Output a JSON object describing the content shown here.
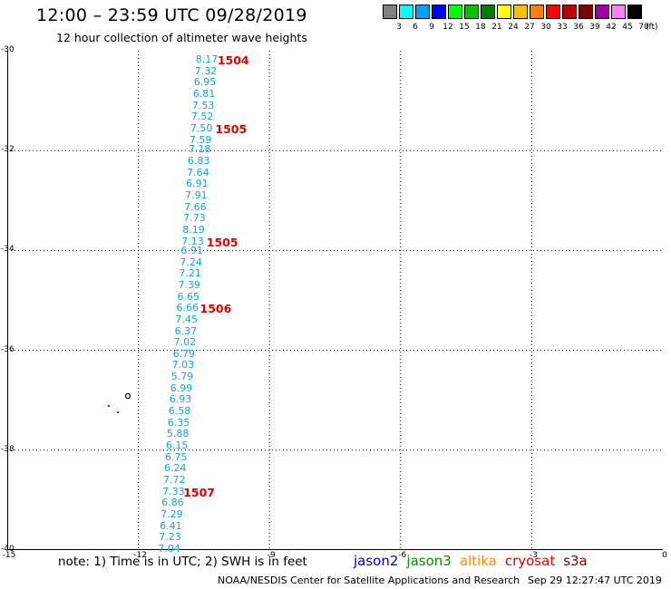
{
  "header": {
    "title": "12:00 – 23:59 UTC 09/28/2019",
    "subtitle": "12 hour collection of altimeter wave heights"
  },
  "colorbar": {
    "colors": [
      "#808080",
      "#00ffff",
      "#00a0ff",
      "#0000ff",
      "#00ff00",
      "#00c000",
      "#008000",
      "#ffff00",
      "#ffc000",
      "#ff8000",
      "#ff0000",
      "#c00000",
      "#800000",
      "#a000a0",
      "#ff80ff",
      "#000000"
    ],
    "labels": [
      "3",
      "6",
      "9",
      "12",
      "15",
      "18",
      "21",
      "24",
      "27",
      "30",
      "33",
      "36",
      "39",
      "42",
      "45",
      "70"
    ],
    "unit": "(ft)"
  },
  "map": {
    "y_labels": [
      "-30",
      "-32",
      "-34",
      "-36",
      "-38",
      "-40"
    ],
    "x_labels": [
      "-15",
      "-12",
      "-9",
      "-6",
      "-3",
      "0"
    ]
  },
  "chart_data": {
    "type": "scatter",
    "x_axis": "longitude",
    "y_axis": "latitude",
    "xlim": [
      -15,
      0
    ],
    "ylim": [
      -40,
      -30
    ],
    "track": [
      {
        "lat": -30.2,
        "lon": -10.4,
        "swh": "8.17"
      },
      {
        "lat": -30.43,
        "lon": -10.42,
        "swh": "7.32"
      },
      {
        "lat": -30.66,
        "lon": -10.44,
        "swh": "6.95"
      },
      {
        "lat": -30.89,
        "lon": -10.46,
        "swh": "6.81"
      },
      {
        "lat": -31.12,
        "lon": -10.48,
        "swh": "7.53"
      },
      {
        "lat": -31.35,
        "lon": -10.5,
        "swh": "7.52"
      },
      {
        "lat": -31.58,
        "lon": -10.52,
        "swh": "7.50"
      },
      {
        "lat": -31.81,
        "lon": -10.54,
        "swh": "7.59"
      },
      {
        "lat": -32.0,
        "lon": -10.56,
        "swh": "7.18"
      },
      {
        "lat": -32.23,
        "lon": -10.58,
        "swh": "6.83"
      },
      {
        "lat": -32.46,
        "lon": -10.6,
        "swh": "7.64"
      },
      {
        "lat": -32.69,
        "lon": -10.62,
        "swh": "6.91"
      },
      {
        "lat": -32.92,
        "lon": -10.64,
        "swh": "7.91"
      },
      {
        "lat": -33.15,
        "lon": -10.66,
        "swh": "7.66"
      },
      {
        "lat": -33.38,
        "lon": -10.68,
        "swh": "7.73"
      },
      {
        "lat": -33.61,
        "lon": -10.7,
        "swh": "8.19"
      },
      {
        "lat": -33.84,
        "lon": -10.72,
        "swh": "7.13"
      },
      {
        "lat": -34.03,
        "lon": -10.74,
        "swh": "6.91"
      },
      {
        "lat": -34.26,
        "lon": -10.76,
        "swh": "7.24"
      },
      {
        "lat": -34.49,
        "lon": -10.78,
        "swh": "7.21"
      },
      {
        "lat": -34.72,
        "lon": -10.8,
        "swh": "7.39"
      },
      {
        "lat": -34.95,
        "lon": -10.82,
        "swh": "6.65"
      },
      {
        "lat": -35.18,
        "lon": -10.84,
        "swh": "6.66"
      },
      {
        "lat": -35.41,
        "lon": -10.86,
        "swh": "7.45"
      },
      {
        "lat": -35.64,
        "lon": -10.88,
        "swh": "6.37"
      },
      {
        "lat": -35.87,
        "lon": -10.9,
        "swh": "7.02"
      },
      {
        "lat": -36.09,
        "lon": -10.92,
        "swh": "6.79"
      },
      {
        "lat": -36.32,
        "lon": -10.94,
        "swh": "7.03"
      },
      {
        "lat": -36.55,
        "lon": -10.96,
        "swh": "5.79"
      },
      {
        "lat": -36.78,
        "lon": -10.98,
        "swh": "6.99"
      },
      {
        "lat": -37.01,
        "lon": -11.0,
        "swh": "6.93"
      },
      {
        "lat": -37.24,
        "lon": -11.02,
        "swh": "6.58"
      },
      {
        "lat": -37.47,
        "lon": -11.04,
        "swh": "6.35"
      },
      {
        "lat": -37.7,
        "lon": -11.06,
        "swh": "5.88"
      },
      {
        "lat": -37.93,
        "lon": -11.08,
        "swh": "6.15"
      },
      {
        "lat": -38.16,
        "lon": -11.1,
        "swh": "6.75"
      },
      {
        "lat": -38.39,
        "lon": -11.12,
        "swh": "6.24"
      },
      {
        "lat": -38.62,
        "lon": -11.14,
        "swh": "7.72"
      },
      {
        "lat": -38.85,
        "lon": -11.16,
        "swh": "7.33"
      },
      {
        "lat": -39.08,
        "lon": -11.18,
        "swh": "6.86"
      },
      {
        "lat": -39.31,
        "lon": -11.2,
        "swh": "7.29"
      },
      {
        "lat": -39.54,
        "lon": -11.22,
        "swh": "6.41"
      },
      {
        "lat": -39.77,
        "lon": -11.24,
        "swh": "7.23"
      },
      {
        "lat": -40.0,
        "lon": -11.26,
        "swh": "7.04"
      }
    ],
    "time_labels": [
      {
        "lat": -30.2,
        "lon": -9.9,
        "text": "1504"
      },
      {
        "lat": -31.58,
        "lon": -9.95,
        "text": "1505"
      },
      {
        "lat": -33.84,
        "lon": -10.15,
        "text": "1505"
      },
      {
        "lat": -35.18,
        "lon": -10.3,
        "text": "1506"
      },
      {
        "lat": -38.85,
        "lon": -10.68,
        "text": "1507"
      }
    ]
  },
  "footer": {
    "note": "note: 1) Time is in UTC; 2) SWH is in feet",
    "satellites": [
      {
        "name": "jason2",
        "color": "#0000d0"
      },
      {
        "name": "jason3",
        "color": "#009000"
      },
      {
        "name": "altika",
        "color": "#ff8c00"
      },
      {
        "name": "cryosat",
        "color": "#e00000"
      },
      {
        "name": "s3a",
        "color": "#800000"
      }
    ],
    "credit": "NOAA/NESDIS Center for Satellite Applications and Research",
    "timestamp": "Sep 29 12:27:47 UTC 2019"
  }
}
